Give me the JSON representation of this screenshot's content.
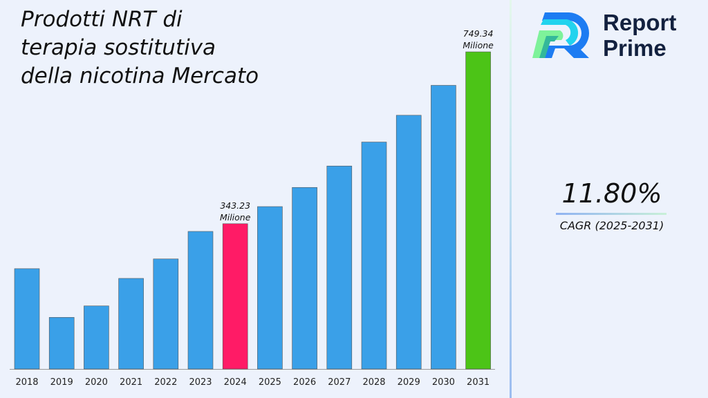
{
  "chart_data": {
    "type": "bar",
    "title": "Prodotti NRT di\nterapia sostitutiva\ndella nicotina Mercato",
    "categories": [
      "2018",
      "2019",
      "2020",
      "2021",
      "2022",
      "2023",
      "2024",
      "2025",
      "2026",
      "2027",
      "2028",
      "2029",
      "2030",
      "2031"
    ],
    "values": [
      237,
      122,
      149,
      214,
      260,
      325,
      343.23,
      383.7,
      429.0,
      479.6,
      536.2,
      599.5,
      670.2,
      749.34
    ],
    "bar_colors": [
      "#3aa0e8",
      "#3aa0e8",
      "#3aa0e8",
      "#3aa0e8",
      "#3aa0e8",
      "#3aa0e8",
      "#ff1b66",
      "#3aa0e8",
      "#3aa0e8",
      "#3aa0e8",
      "#3aa0e8",
      "#3aa0e8",
      "#3aa0e8",
      "#4cc417"
    ],
    "data_labels": [
      {
        "category": "2024",
        "value": "343.23",
        "unit": "Milione"
      },
      {
        "category": "2031",
        "value": "749.34",
        "unit": "Milione"
      }
    ],
    "ylim": [
      0,
      800
    ],
    "grid": false,
    "xlabel": "",
    "ylabel": ""
  },
  "cagr": {
    "value": "11.80%",
    "label": "CAGR (2025-2031)"
  },
  "logo": {
    "line1": "Report",
    "line2": "Prime"
  }
}
